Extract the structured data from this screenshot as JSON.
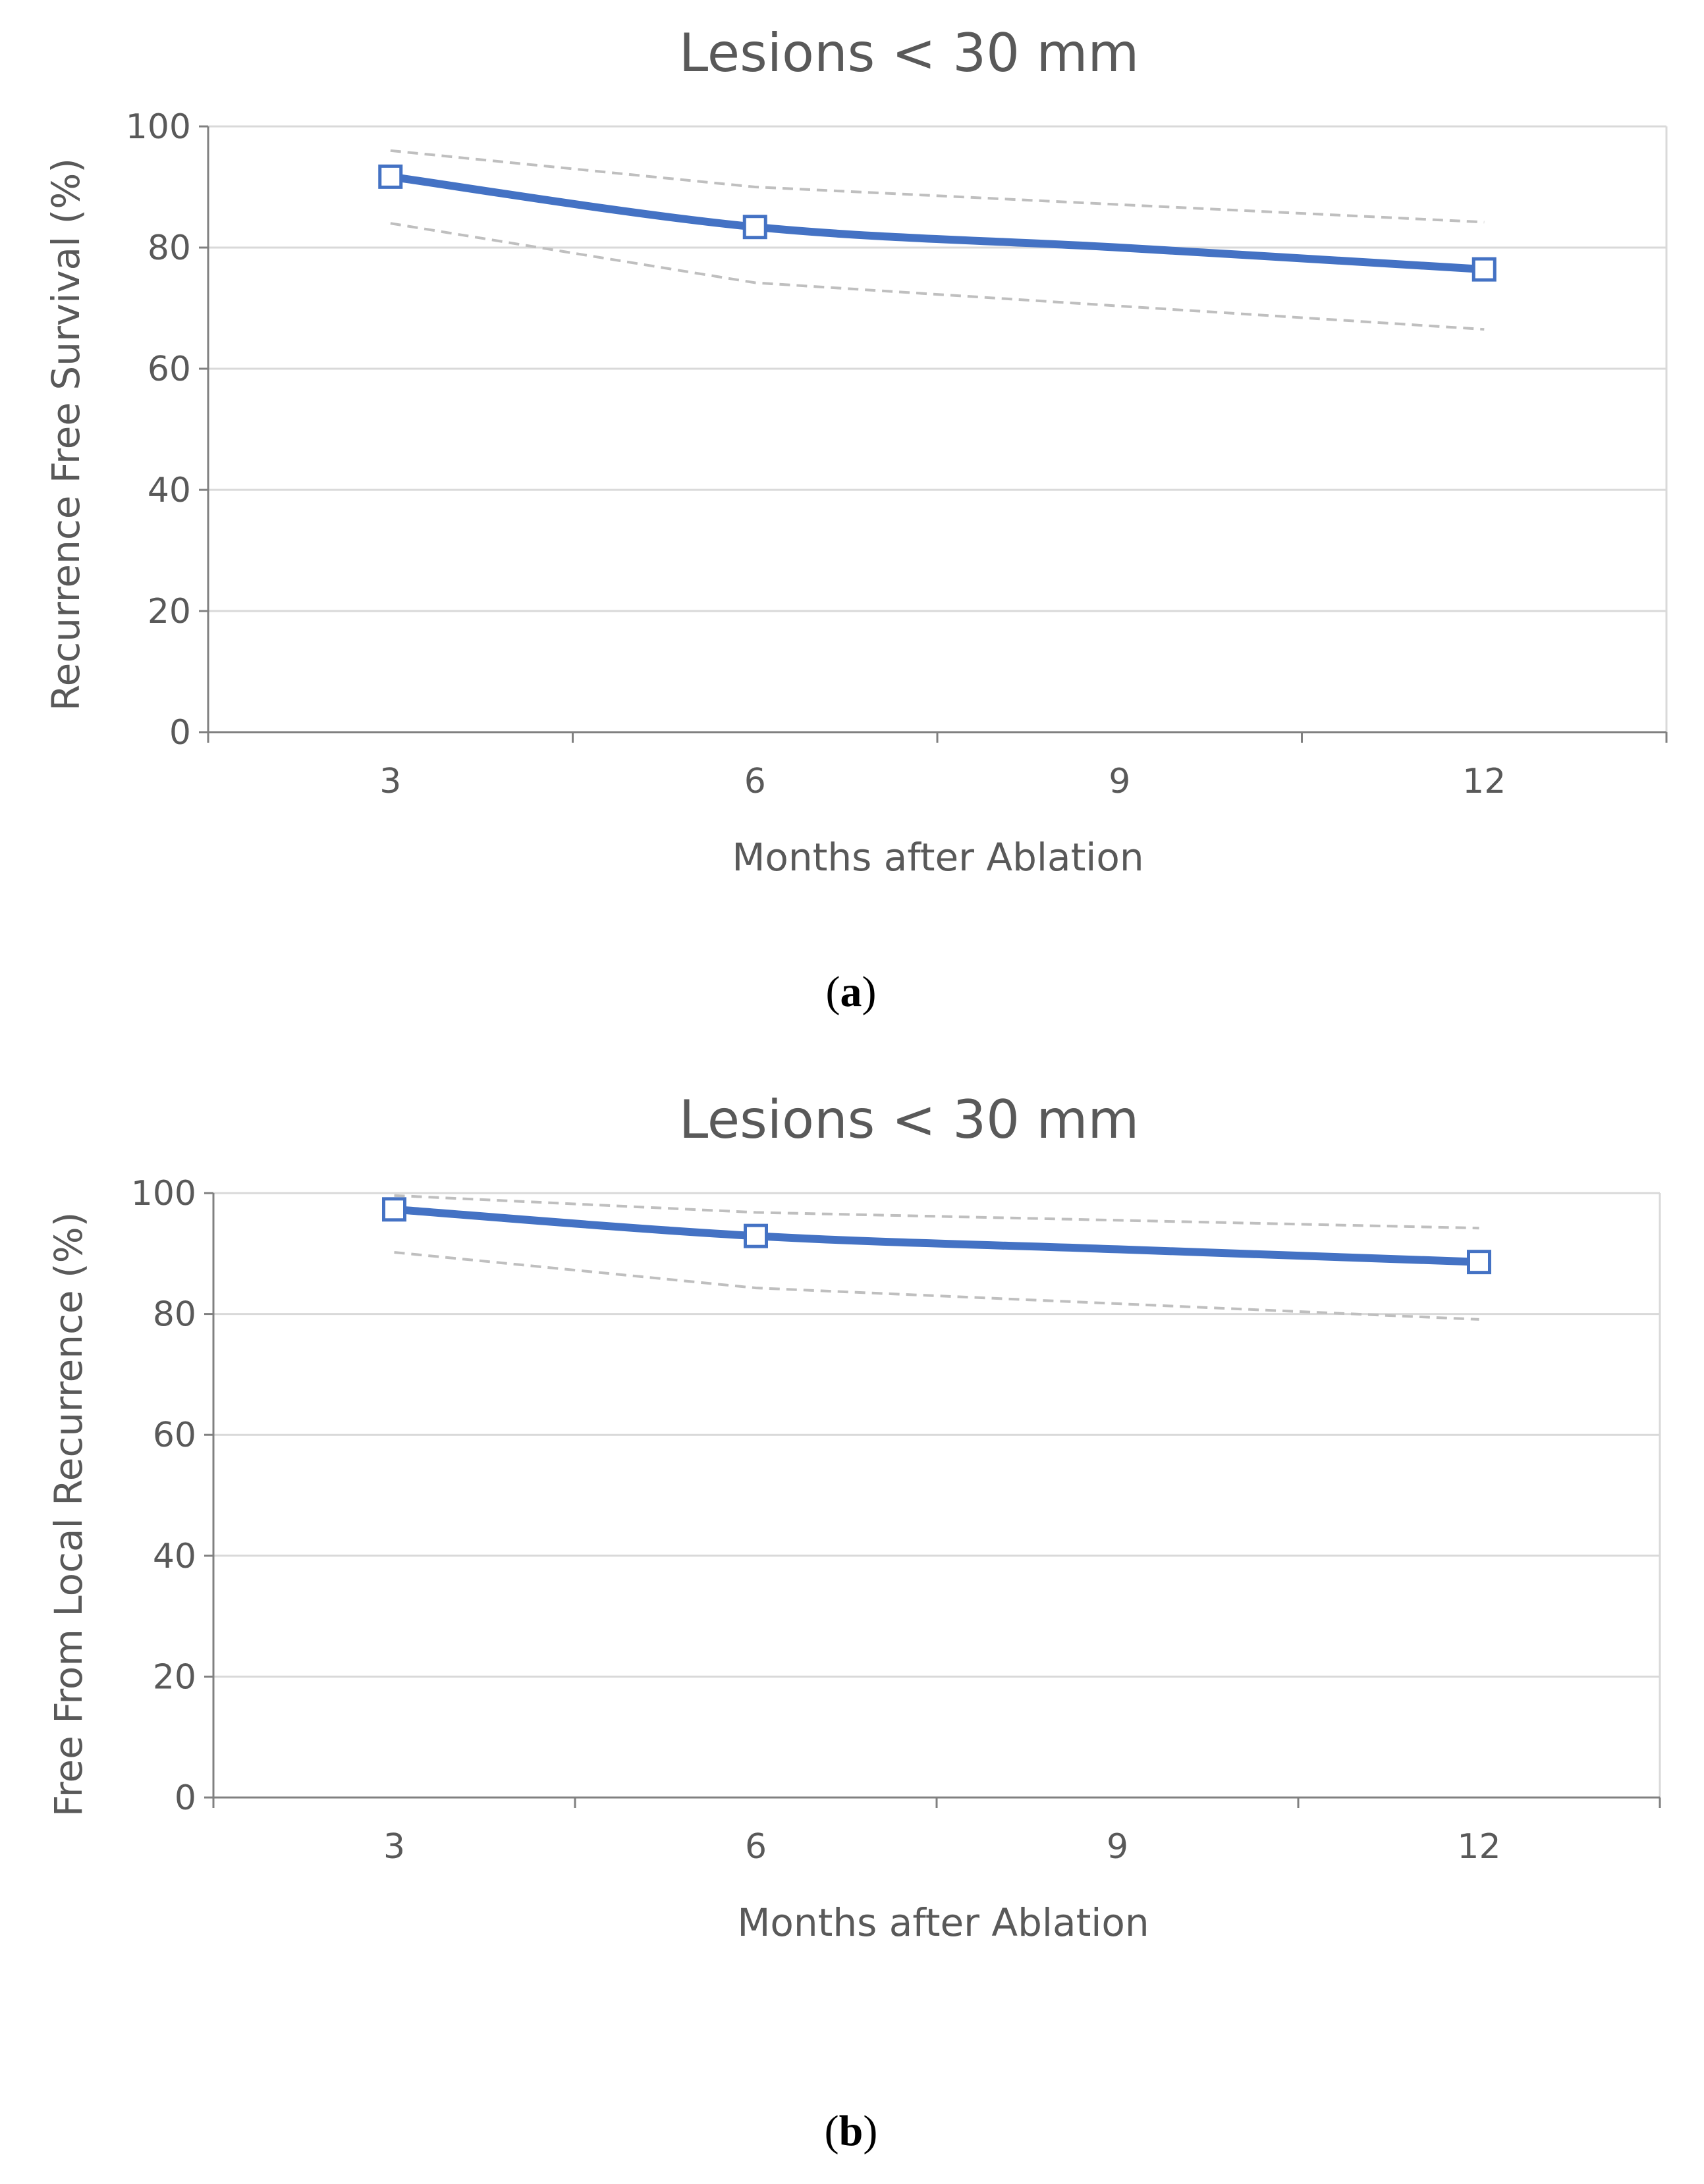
{
  "chart_data": [
    {
      "type": "line",
      "panel": "a",
      "title": "Lesions < 30 mm",
      "xlabel": "Months after Ablation",
      "ylabel": "Recurrence Free Survival (%)",
      "x": [
        3,
        6,
        9,
        12
      ],
      "xlim": [
        1.5,
        13.5
      ],
      "xticks": [
        3,
        6,
        9,
        12
      ],
      "ylim": [
        0,
        100
      ],
      "yticks": [
        0,
        20,
        40,
        60,
        80,
        100
      ],
      "grid": true,
      "series": [
        {
          "name": "estimate",
          "style": "solid",
          "color": "#4472C4",
          "x": [
            3,
            6,
            12
          ],
          "values": [
            91.7,
            83.4,
            76.4
          ],
          "curve_x": [
            3,
            6,
            9,
            12
          ],
          "curve_values": [
            91.7,
            83.4,
            80.0,
            76.4
          ],
          "markers": true
        },
        {
          "name": "upper CI",
          "style": "dashed",
          "color": "#BFBFBF",
          "x": [
            3,
            6,
            12
          ],
          "values": [
            96,
            90,
            84.2
          ]
        },
        {
          "name": "lower CI",
          "style": "dashed",
          "color": "#BFBFBF",
          "x": [
            3,
            6,
            12
          ],
          "values": [
            84,
            74.2,
            66.5
          ]
        }
      ]
    },
    {
      "type": "line",
      "panel": "b",
      "title": "Lesions < 30 mm",
      "xlabel": "Months after Ablation",
      "ylabel": "Free From Local Recurrence (%)",
      "x": [
        3,
        6,
        9,
        12
      ],
      "xlim": [
        1.5,
        13.5
      ],
      "xticks": [
        3,
        6,
        9,
        12
      ],
      "ylim": [
        0,
        100
      ],
      "yticks": [
        0,
        20,
        40,
        60,
        80,
        100
      ],
      "grid": true,
      "series": [
        {
          "name": "estimate",
          "style": "solid",
          "color": "#4472C4",
          "x": [
            3,
            6,
            12
          ],
          "values": [
            97.3,
            92.9,
            88.6
          ],
          "curve_x": [
            3,
            6,
            9,
            12
          ],
          "curve_values": [
            97.3,
            92.9,
            90.7,
            88.6
          ],
          "markers": true
        },
        {
          "name": "upper CI",
          "style": "dashed",
          "color": "#BFBFBF",
          "x": [
            3,
            6,
            12
          ],
          "values": [
            99.6,
            96.8,
            94.2
          ]
        },
        {
          "name": "lower CI",
          "style": "dashed",
          "color": "#BFBFBF",
          "x": [
            3,
            6,
            12
          ],
          "values": [
            90.2,
            84.3,
            79.1
          ]
        }
      ]
    }
  ],
  "panel_labels": [
    {
      "open": "(",
      "letter": "a",
      "close": ")"
    },
    {
      "open": "(",
      "letter": "b",
      "close": ")"
    }
  ],
  "colors": {
    "estimate": "#4472C4",
    "ci": "#BFBFBF",
    "grid": "#D9D9D9",
    "axis": "#808080",
    "text": "#595959"
  }
}
